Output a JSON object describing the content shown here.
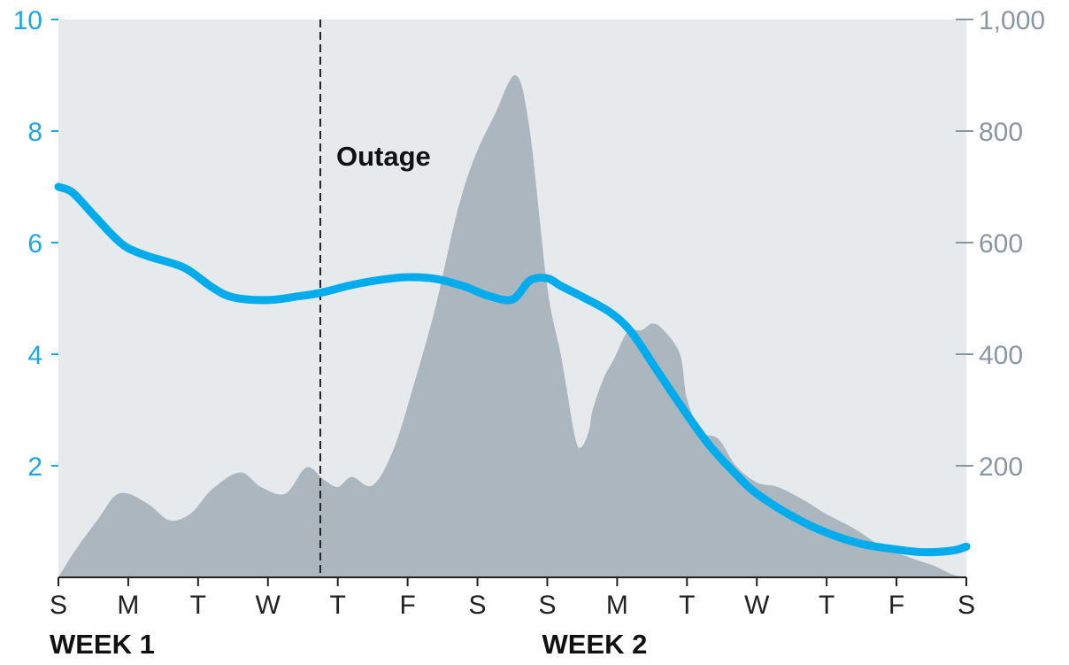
{
  "chart_data": {
    "type": "line",
    "title": "",
    "colors": {
      "plot_background": "#e7eaed",
      "area_fill": "#abb6be",
      "line": "#00acec",
      "left_axis_text": "#1aa8e6",
      "right_axis_text": "#8a96a0",
      "baseline": "#222222",
      "annotation_line": "#222222"
    },
    "x_axis": {
      "day_labels": [
        "S",
        "M",
        "T",
        "W",
        "T",
        "F",
        "S",
        "S",
        "M",
        "T",
        "W",
        "T",
        "F",
        "S"
      ],
      "group_labels": [
        {
          "label": "WEEK 1",
          "start_day": 0
        },
        {
          "label": "WEEK 2",
          "start_day": 7
        }
      ],
      "xlim": [
        0,
        13
      ]
    },
    "y_left": {
      "ylim": [
        0,
        10
      ],
      "ticks": [
        2,
        4,
        6,
        8,
        10
      ],
      "tick_labels": [
        "2",
        "4",
        "6",
        "8",
        "10"
      ]
    },
    "y_right": {
      "ylim": [
        0,
        1000
      ],
      "ticks": [
        200,
        400,
        600,
        800,
        1000
      ],
      "tick_labels": [
        "200",
        "400",
        "600",
        "800",
        "1,000"
      ]
    },
    "annotations": [
      {
        "label": "Outage",
        "x": 3.75,
        "style": "dashed-vertical-line"
      }
    ],
    "series": [
      {
        "kind": "area",
        "axis": "right",
        "x": [
          0,
          0.25,
          0.6,
          0.8,
          1.0,
          1.3,
          1.6,
          1.9,
          2.2,
          2.6,
          2.9,
          3.25,
          3.55,
          3.8,
          4.0,
          4.2,
          4.5,
          4.8,
          5.1,
          5.4,
          5.7,
          5.95,
          6.25,
          6.55,
          6.75,
          7.0,
          7.2,
          7.4,
          7.5,
          7.6,
          7.65,
          7.8,
          7.95,
          8.15,
          8.35,
          8.5,
          8.65,
          8.9,
          9.0,
          9.2,
          9.45,
          9.7,
          10.0,
          10.3,
          10.65,
          11.0,
          11.4,
          11.8,
          12.2,
          12.55,
          12.8,
          13.0
        ],
        "values": [
          0,
          50,
          110,
          145,
          150,
          130,
          102,
          115,
          158,
          188,
          162,
          150,
          197,
          175,
          162,
          180,
          165,
          230,
          350,
          485,
          650,
          750,
          830,
          900,
          800,
          520,
          395,
          250,
          235,
          265,
          300,
          355,
          390,
          440,
          443,
          455,
          445,
          400,
          320,
          262,
          248,
          200,
          170,
          162,
          140,
          113,
          87,
          55,
          35,
          20,
          5,
          0
        ]
      },
      {
        "kind": "line",
        "axis": "left",
        "x": [
          0,
          0.2,
          0.5,
          0.8,
          1.0,
          1.3,
          1.8,
          2.2,
          2.5,
          3.0,
          3.45,
          3.75,
          4.2,
          4.6,
          5.0,
          5.4,
          5.8,
          6.15,
          6.5,
          6.75,
          7.0,
          7.2,
          7.5,
          7.9,
          8.2,
          8.55,
          8.9,
          9.3,
          9.7,
          10.0,
          10.5,
          11.0,
          11.5,
          12.0,
          12.4,
          12.8,
          13.0
        ],
        "values": [
          7.0,
          6.9,
          6.5,
          6.1,
          5.9,
          5.75,
          5.55,
          5.2,
          5.02,
          4.97,
          5.04,
          5.1,
          5.24,
          5.33,
          5.38,
          5.35,
          5.22,
          5.05,
          4.98,
          5.32,
          5.36,
          5.22,
          5.03,
          4.75,
          4.4,
          3.75,
          3.1,
          2.4,
          1.85,
          1.5,
          1.1,
          0.8,
          0.6,
          0.5,
          0.45,
          0.48,
          0.55
        ]
      }
    ]
  }
}
